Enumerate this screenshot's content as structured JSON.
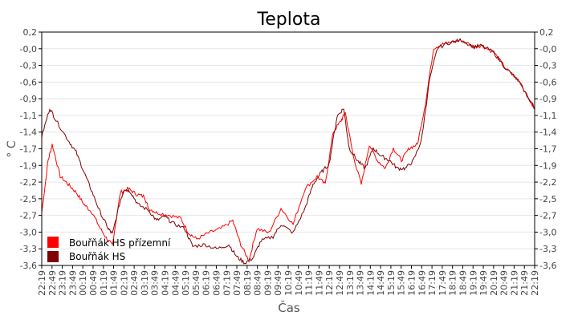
{
  "chart_data": {
    "type": "line",
    "title": "Teplota",
    "xlabel": "Čas",
    "ylabel": "° C",
    "ylim": [
      -3.6,
      0.2
    ],
    "xlim_hours": [
      0,
      24
    ],
    "grid": "horizontal",
    "legend_position": "bottom-left",
    "y_ticks": [
      "0,2",
      "-0,0",
      "-0,3",
      "-0,6",
      "-0,9",
      "-1,1",
      "-1,4",
      "-1,7",
      "-1,9",
      "-2,2",
      "-2,5",
      "-2,7",
      "-3,0",
      "-3,3",
      "-3,6"
    ],
    "x_ticks": [
      "22:19",
      "22:49",
      "23:19",
      "23:49",
      "00:19",
      "00:49",
      "01:19",
      "01:49",
      "02:19",
      "02:49",
      "03:19",
      "03:49",
      "04:19",
      "04:49",
      "05:19",
      "05:49",
      "06:19",
      "06:49",
      "07:19",
      "07:49",
      "08:19",
      "08:49",
      "09:19",
      "09:49",
      "10:19",
      "10:49",
      "11:19",
      "11:49",
      "12:19",
      "12:49",
      "13:19",
      "13:49",
      "14:19",
      "14:49",
      "15:19",
      "15:49",
      "16:19",
      "16:49",
      "17:19",
      "17:49",
      "18:19",
      "18:49",
      "19:19",
      "19:49",
      "20:19",
      "20:49",
      "21:19",
      "21:49",
      "22:19"
    ],
    "series": [
      {
        "name": "Bouřňák HS přízemní",
        "color": "#ff0000",
        "x_hours": [
          0,
          0.31,
          0.51,
          0.9,
          1.29,
          1.68,
          2.07,
          2.46,
          2.85,
          3.24,
          3.44,
          3.83,
          4.22,
          4.61,
          5.0,
          5.2,
          5.59,
          6.18,
          6.76,
          7.15,
          7.54,
          8.13,
          8.72,
          9.3,
          9.69,
          10.09,
          10.48,
          11.06,
          11.65,
          12.24,
          12.82,
          13.41,
          13.8,
          14.19,
          14.58,
          14.78,
          15.17,
          15.56,
          15.95,
          16.34,
          16.73,
          17.12,
          17.51,
          17.9,
          18.29,
          18.68,
          19.08,
          19.47,
          19.86,
          20.44,
          21.03,
          21.42,
          22.01,
          22.59,
          23.18,
          23.77,
          24.0
        ],
        "values": [
          -2.74,
          -1.89,
          -1.63,
          -2.15,
          -2.28,
          -2.41,
          -2.61,
          -2.74,
          -3.0,
          -3.2,
          -3.26,
          -2.41,
          -2.35,
          -2.44,
          -2.48,
          -2.67,
          -2.74,
          -2.78,
          -2.83,
          -3.07,
          -3.17,
          -3.07,
          -3.0,
          -2.87,
          -3.26,
          -3.52,
          -3.0,
          -3.07,
          -2.67,
          -2.93,
          -2.35,
          -2.15,
          -2.28,
          -1.43,
          -1.24,
          -1.11,
          -1.82,
          -2.28,
          -1.63,
          -1.89,
          -2.02,
          -1.69,
          -1.89,
          -1.69,
          -1.63,
          -0.97,
          -0.06,
          0.0,
          0.03,
          0.07,
          -0.04,
          -0.02,
          -0.13,
          -0.39,
          -0.58,
          -0.91,
          -1.04
        ]
      },
      {
        "name": "Bouřňák HS",
        "color": "#800000",
        "x_hours": [
          0,
          0.39,
          0.7,
          1.29,
          1.68,
          2.07,
          2.46,
          2.85,
          3.24,
          3.44,
          3.83,
          4.03,
          4.3,
          4.69,
          5.2,
          5.59,
          5.98,
          6.37,
          6.96,
          7.35,
          7.94,
          8.52,
          9.11,
          9.5,
          9.89,
          10.28,
          10.67,
          11.26,
          11.65,
          12.24,
          12.82,
          13.21,
          13.6,
          13.99,
          14.38,
          14.7,
          14.97,
          15.36,
          15.75,
          16.14,
          16.54,
          16.93,
          17.32,
          17.71,
          18.1,
          18.49,
          18.88,
          19.27,
          19.86,
          20.44,
          21.03,
          21.42,
          22.01,
          22.59,
          23.18,
          23.77,
          24.0
        ],
        "values": [
          -1.5,
          -1.04,
          -1.24,
          -1.56,
          -1.76,
          -2.09,
          -2.41,
          -2.74,
          -3.0,
          -3.09,
          -2.54,
          -2.35,
          -2.39,
          -2.61,
          -2.7,
          -2.87,
          -2.8,
          -2.91,
          -3.0,
          -3.29,
          -3.26,
          -3.33,
          -3.26,
          -3.46,
          -3.56,
          -3.48,
          -3.2,
          -3.13,
          -2.93,
          -3.07,
          -2.67,
          -2.28,
          -2.09,
          -1.95,
          -1.17,
          -1.04,
          -1.69,
          -1.89,
          -2.02,
          -1.69,
          -1.82,
          -1.89,
          -2.02,
          -2.02,
          -1.89,
          -1.56,
          -0.58,
          -0.06,
          0.03,
          0.07,
          -0.04,
          -0.02,
          -0.13,
          -0.39,
          -0.58,
          -0.91,
          -1.04
        ]
      }
    ]
  }
}
